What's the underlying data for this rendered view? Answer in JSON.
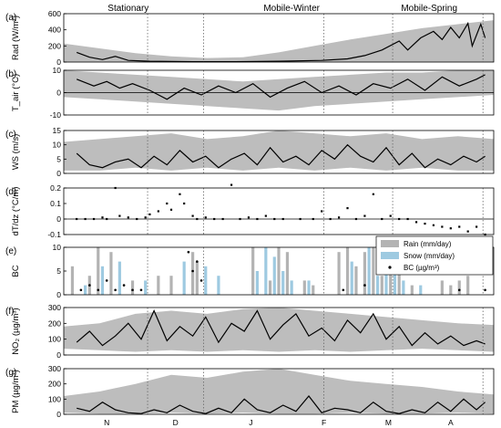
{
  "period_labels": [
    "Stationary",
    "Mobile-Winter",
    "Mobile-Spring"
  ],
  "months": [
    "N",
    "D",
    "J",
    "F",
    "M",
    "A"
  ],
  "colors": {
    "band": "#bdbdbd",
    "line": "#000000",
    "rain": "#b3b3b3",
    "snow": "#9ecae1",
    "zero": "#000000",
    "divider": "#666666"
  },
  "legend": {
    "rain": "Rain (mm/day)",
    "snow": "Snow (mm/day)",
    "bc": "BC (µg/m³)"
  },
  "chart_data": [
    {
      "type": "area",
      "panel": "(a)",
      "ylabel": "Rad (W/m²)",
      "ylim": [
        0,
        600
      ],
      "yticks": [
        "0",
        "200",
        "400",
        "600"
      ],
      "band_lower": [
        0,
        0,
        0,
        0,
        0,
        0,
        0,
        0,
        0,
        0,
        0,
        0,
        0
      ],
      "band_upper": [
        230,
        170,
        110,
        70,
        50,
        60,
        120,
        200,
        280,
        350,
        420,
        470,
        520
      ],
      "series_x": [
        0.03,
        0.06,
        0.09,
        0.12,
        0.15,
        0.2,
        0.3,
        0.4,
        0.5,
        0.6,
        0.66,
        0.7,
        0.74,
        0.78,
        0.8,
        0.83,
        0.86,
        0.88,
        0.9,
        0.92,
        0.94,
        0.95,
        0.97,
        0.98
      ],
      "series_y": [
        120,
        60,
        30,
        70,
        20,
        10,
        5,
        5,
        10,
        20,
        40,
        80,
        150,
        260,
        150,
        300,
        380,
        280,
        430,
        300,
        480,
        200,
        470,
        300
      ]
    },
    {
      "type": "line",
      "panel": "(b)",
      "ylabel": "T_air (°C)",
      "ylim": [
        -10,
        10
      ],
      "yticks": [
        "-10",
        "0",
        "10"
      ],
      "band_lower": [
        -2,
        -3,
        -4,
        -5,
        -6,
        -7,
        -8,
        -6,
        -5,
        -4,
        -3,
        -2,
        -1
      ],
      "band_upper": [
        10,
        9,
        8,
        7,
        6,
        5,
        6,
        7,
        8,
        9,
        9,
        10,
        10
      ],
      "series_x": [
        0.03,
        0.07,
        0.1,
        0.13,
        0.16,
        0.2,
        0.24,
        0.28,
        0.32,
        0.36,
        0.4,
        0.44,
        0.48,
        0.52,
        0.56,
        0.6,
        0.64,
        0.68,
        0.72,
        0.76,
        0.8,
        0.84,
        0.88,
        0.92,
        0.96,
        0.98
      ],
      "series_y": [
        6,
        3,
        5,
        2,
        4,
        1,
        -3,
        2,
        -1,
        3,
        0,
        4,
        -2,
        2,
        5,
        0,
        3,
        -1,
        4,
        2,
        6,
        1,
        7,
        3,
        6,
        8
      ]
    },
    {
      "type": "line",
      "panel": "(c)",
      "ylabel": "WS (m/s)",
      "ylim": [
        0,
        15
      ],
      "yticks": [
        "0",
        "5",
        "10",
        "15"
      ],
      "band_lower": [
        1,
        1,
        2,
        1,
        2,
        1,
        2,
        1,
        2,
        1,
        2,
        1,
        1
      ],
      "band_upper": [
        11,
        12,
        13,
        14,
        12,
        13,
        15,
        14,
        13,
        14,
        12,
        13,
        12
      ],
      "series_x": [
        0.03,
        0.06,
        0.09,
        0.12,
        0.15,
        0.18,
        0.21,
        0.24,
        0.27,
        0.3,
        0.33,
        0.36,
        0.39,
        0.42,
        0.45,
        0.48,
        0.51,
        0.54,
        0.57,
        0.6,
        0.63,
        0.66,
        0.69,
        0.72,
        0.75,
        0.78,
        0.81,
        0.84,
        0.87,
        0.9,
        0.93,
        0.96,
        0.98
      ],
      "series_y": [
        7,
        3,
        2,
        4,
        5,
        2,
        6,
        3,
        8,
        4,
        6,
        2,
        5,
        7,
        3,
        9,
        4,
        6,
        3,
        8,
        5,
        10,
        6,
        4,
        9,
        3,
        7,
        2,
        5,
        3,
        6,
        4,
        6
      ]
    },
    {
      "type": "scatter",
      "panel": "(d)",
      "ylabel": "dT/dz (°C/m)",
      "ylim": [
        -0.1,
        0.2
      ],
      "yticks": [
        "-0.1",
        "0",
        "0.1",
        "0.2"
      ],
      "points_x": [
        0.03,
        0.05,
        0.07,
        0.09,
        0.1,
        0.12,
        0.13,
        0.15,
        0.17,
        0.19,
        0.2,
        0.22,
        0.24,
        0.25,
        0.27,
        0.28,
        0.3,
        0.31,
        0.33,
        0.35,
        0.37,
        0.39,
        0.41,
        0.43,
        0.45,
        0.47,
        0.49,
        0.51,
        0.55,
        0.58,
        0.6,
        0.62,
        0.64,
        0.66,
        0.68,
        0.7,
        0.72,
        0.74,
        0.76,
        0.78,
        0.8,
        0.82,
        0.84,
        0.86,
        0.88,
        0.9,
        0.92,
        0.94,
        0.96,
        0.98
      ],
      "points_y": [
        0,
        0,
        0,
        0.01,
        0,
        0.2,
        0.02,
        0.01,
        0,
        0.01,
        0.03,
        0.05,
        0.1,
        0.06,
        0.16,
        0.1,
        0.02,
        0,
        0.01,
        0,
        0,
        0.22,
        0,
        0.01,
        0,
        0.02,
        0,
        0,
        0,
        0,
        0.05,
        0,
        0.01,
        0.07,
        0,
        0.02,
        0.16,
        0,
        0.02,
        0,
        0,
        -0.02,
        -0.03,
        -0.04,
        -0.05,
        -0.06,
        -0.05,
        -0.08,
        -0.05,
        -0.1
      ]
    },
    {
      "type": "bar",
      "panel": "(e)",
      "ylabel": "BC",
      "ylim": [
        0,
        10
      ],
      "yticks": [
        "0",
        "5",
        "10"
      ],
      "rain_x": [
        0.02,
        0.06,
        0.08,
        0.11,
        0.16,
        0.22,
        0.25,
        0.3,
        0.31,
        0.44,
        0.48,
        0.5,
        0.52,
        0.56,
        0.58,
        0.64,
        0.66,
        0.68,
        0.7,
        0.72,
        0.74,
        0.76,
        0.78,
        0.81,
        0.88,
        0.9,
        0.92,
        0.94
      ],
      "rain_y": [
        6,
        4,
        10,
        9,
        3,
        4,
        4,
        9,
        7,
        10,
        3,
        10,
        9,
        3,
        2,
        9,
        10,
        6,
        9,
        10,
        4,
        10,
        9,
        2,
        3,
        2,
        3,
        4
      ],
      "snow_x": [
        0.05,
        0.09,
        0.13,
        0.19,
        0.28,
        0.33,
        0.36,
        0.45,
        0.47,
        0.49,
        0.51,
        0.53,
        0.57,
        0.67,
        0.71,
        0.73,
        0.75,
        0.77,
        0.79,
        0.83
      ],
      "snow_y": [
        2,
        6,
        7,
        3,
        7,
        6,
        4,
        5,
        10,
        8,
        5,
        3,
        3,
        7,
        10,
        4,
        5,
        6,
        3,
        2
      ],
      "bc_x": [
        0.04,
        0.06,
        0.08,
        0.1,
        0.12,
        0.14,
        0.16,
        0.18,
        0.29,
        0.3,
        0.31,
        0.32,
        0.65,
        0.7,
        0.92,
        0.98
      ],
      "bc_y": [
        1,
        2,
        1,
        3,
        1,
        2,
        1,
        1,
        9,
        5,
        7,
        3,
        1,
        2,
        1,
        1
      ]
    },
    {
      "type": "line",
      "panel": "(f)",
      "ylabel": "NO₂ (µg/m³)",
      "ylim": [
        0,
        300
      ],
      "yticks": [
        "0",
        "100",
        "200",
        "300"
      ],
      "band_lower": [
        40,
        30,
        20,
        30,
        20,
        30,
        20,
        30,
        20,
        30,
        40,
        30,
        20
      ],
      "band_upper": [
        180,
        200,
        260,
        280,
        260,
        290,
        300,
        280,
        260,
        240,
        220,
        200,
        190
      ],
      "series_x": [
        0.03,
        0.06,
        0.09,
        0.12,
        0.15,
        0.18,
        0.21,
        0.24,
        0.27,
        0.3,
        0.33,
        0.36,
        0.39,
        0.42,
        0.45,
        0.48,
        0.51,
        0.54,
        0.57,
        0.6,
        0.63,
        0.66,
        0.69,
        0.72,
        0.75,
        0.78,
        0.81,
        0.84,
        0.87,
        0.9,
        0.93,
        0.96,
        0.98
      ],
      "series_y": [
        80,
        150,
        60,
        120,
        200,
        100,
        280,
        90,
        180,
        120,
        240,
        80,
        200,
        150,
        280,
        100,
        190,
        260,
        120,
        170,
        90,
        220,
        140,
        260,
        100,
        180,
        60,
        140,
        70,
        120,
        60,
        90,
        70
      ]
    },
    {
      "type": "line",
      "panel": "(g)",
      "ylabel": "PM (µg/m³)",
      "ylim": [
        0,
        300
      ],
      "yticks": [
        "0",
        "100",
        "200",
        "300"
      ],
      "band_lower": [
        10,
        5,
        5,
        10,
        5,
        10,
        5,
        5,
        10,
        5,
        5,
        10,
        5
      ],
      "band_upper": [
        120,
        150,
        200,
        260,
        240,
        280,
        300,
        260,
        220,
        200,
        180,
        150,
        130
      ],
      "series_x": [
        0.03,
        0.06,
        0.09,
        0.12,
        0.15,
        0.18,
        0.21,
        0.24,
        0.27,
        0.3,
        0.33,
        0.36,
        0.39,
        0.42,
        0.45,
        0.48,
        0.51,
        0.54,
        0.57,
        0.6,
        0.63,
        0.66,
        0.69,
        0.72,
        0.75,
        0.78,
        0.81,
        0.84,
        0.87,
        0.9,
        0.93,
        0.96,
        0.98
      ],
      "series_y": [
        40,
        20,
        80,
        30,
        10,
        5,
        30,
        10,
        60,
        20,
        5,
        40,
        10,
        100,
        30,
        10,
        60,
        20,
        120,
        10,
        40,
        30,
        10,
        80,
        20,
        5,
        30,
        10,
        80,
        20,
        100,
        30,
        80
      ]
    }
  ]
}
